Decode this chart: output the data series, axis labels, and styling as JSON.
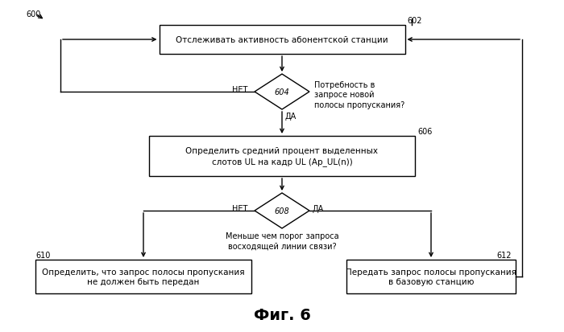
{
  "bg_color": "#ffffff",
  "fig_title": "Фиг. 6",
  "fig_title_fontsize": 14,
  "label_600": "600",
  "label_602": "602",
  "label_604": "604",
  "label_606": "606",
  "label_608": "608",
  "label_610": "610",
  "label_612": "612",
  "box1_text": "Отслеживать активность абонентской станции",
  "diamond1_label": "Потребность в\nзапросе новой\nполосы пропускания?",
  "box2_text": "Определить средний процент выделенных\nслотов UL на кадр UL (Ap_UL(n))",
  "diamond2_label": "Меньше чем порог запроса\nвосходящей линии связи?",
  "box3_text": "Определить, что запрос полосы пропускания\nне должен быть передан",
  "box4_text": "Передать запрос полосы пропускания\nв базовую станцию",
  "yes_label": "ДА",
  "no_label": "НЕТ",
  "line_color": "#000000",
  "text_color": "#000000",
  "fontsize": 7.5,
  "label_fontsize": 7
}
